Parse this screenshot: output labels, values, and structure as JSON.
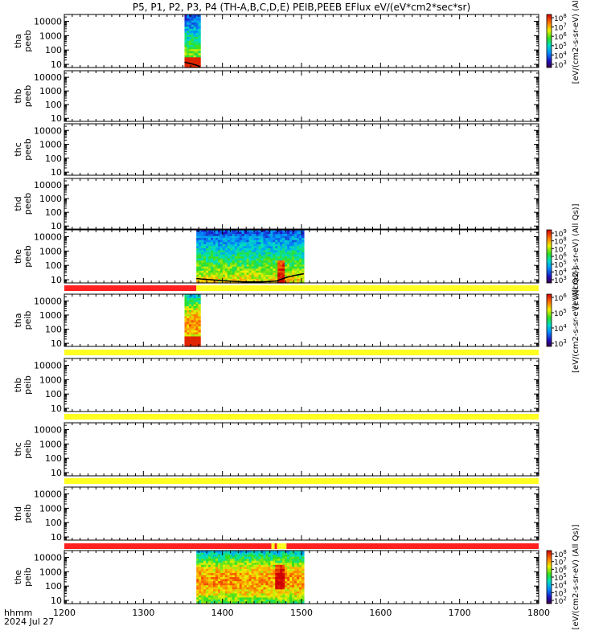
{
  "chart_data": {
    "type": "heatmap",
    "title": "P5, P1, P2, P3, P4 (TH-A,B,C,D,E) PEIB,PEEB EFlux eV/(eV*cm2*sec*sr)",
    "x_axis": {
      "label_line1": "hhmm",
      "label_line2": "2024 Jul 27",
      "range": [
        1200,
        1800
      ],
      "ticks": [
        "1200",
        "1300",
        "1400",
        "1500",
        "1600",
        "1700",
        "1800"
      ]
    },
    "y_tick_labels": [
      "10000",
      "1000",
      "100",
      "10"
    ],
    "panels": [
      {
        "label1": "tha",
        "label2": "peeb",
        "yrange": [
          6,
          30000
        ],
        "data_start": 1352,
        "data_end": 1372,
        "low_energy_line": true,
        "colorbar": {
          "ticks": [
            "10^8",
            "10^7",
            "10^6",
            "10^5",
            "10^4",
            "10^3"
          ],
          "title": "[eV/(cm2-s-sr-eV) (All"
        }
      },
      {
        "label1": "thb",
        "label2": "peeb",
        "yrange": [
          6,
          30000
        ]
      },
      {
        "label1": "thc",
        "label2": "peeb",
        "yrange": [
          6,
          30000
        ]
      },
      {
        "label1": "thd",
        "label2": "peeb",
        "yrange": [
          6,
          30000
        ]
      },
      {
        "label1": "the",
        "label2": "peeb",
        "yrange": [
          6,
          30000
        ],
        "data_start": 1367,
        "data_end": 1503,
        "low_energy_line": true,
        "colorbar": {
          "ticks": [
            "10^9",
            "10^8",
            "10^7",
            "10^6",
            "10^5",
            "10^4",
            "10^3"
          ],
          "title": "[eV/(cm2-s-sr-eV) (All Qs)]"
        }
      },
      {
        "label1": "tha",
        "label2": "peib",
        "yrange": [
          6,
          30000
        ],
        "data_start": 1352,
        "data_end": 1372,
        "colorbar": {
          "ticks": [
            "10^6",
            "10^5",
            "10^4",
            "10^3"
          ],
          "title": "[eV/(cm2-s-sr-eV) (All Qs)]"
        }
      },
      {
        "label1": "thb",
        "label2": "peib",
        "yrange": [
          6,
          30000
        ]
      },
      {
        "label1": "thc",
        "label2": "peib",
        "yrange": [
          6,
          30000
        ]
      },
      {
        "label1": "thd",
        "label2": "peib",
        "yrange": [
          6,
          30000
        ]
      },
      {
        "label1": "the",
        "label2": "peib",
        "yrange": [
          6,
          30000
        ],
        "data_start": 1367,
        "data_end": 1503,
        "colorbar": {
          "ticks": [
            "10^8",
            "10^7",
            "10^6",
            "10^5",
            "10^4",
            "10^3",
            "10^2"
          ],
          "title": "[eV/(cm2-s-sr-eV) (All Qs)]"
        }
      }
    ],
    "mode_bars": [
      {
        "segments": [
          {
            "from": 1200,
            "to": 1367,
            "color": "#ff2020"
          },
          {
            "from": 1367,
            "to": 1800,
            "color": "#ffff20"
          }
        ]
      },
      {
        "segments": [
          {
            "from": 1200,
            "to": 1800,
            "color": "#ffff20"
          }
        ]
      },
      {
        "segments": [
          {
            "from": 1200,
            "to": 1800,
            "color": "#ffff20"
          }
        ]
      },
      {
        "segments": [
          {
            "from": 1200,
            "to": 1800,
            "color": "#ffff20"
          }
        ]
      },
      {
        "segments": [
          {
            "from": 1200,
            "to": 1462,
            "color": "#ff2020"
          },
          {
            "from": 1462,
            "to": 1466,
            "color": "#ffff20"
          },
          {
            "from": 1466,
            "to": 1469,
            "color": "#ff2020"
          },
          {
            "from": 1469,
            "to": 1481,
            "color": "#ffff20"
          },
          {
            "from": 1481,
            "to": 1800,
            "color": "#ff2020"
          }
        ]
      }
    ]
  }
}
